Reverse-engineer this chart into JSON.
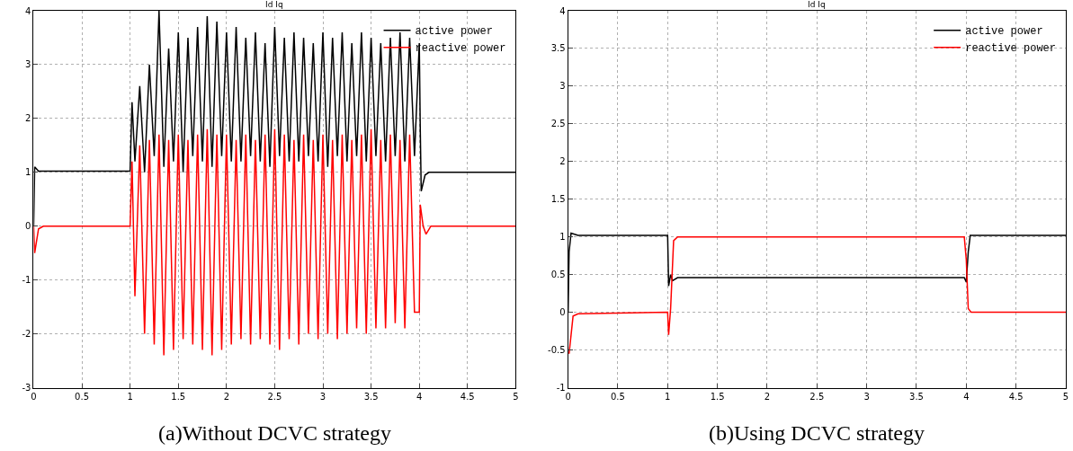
{
  "chart_data": [
    {
      "type": "line",
      "title": "Id Iq",
      "annotations": [
        "(a)Without DCVC strategy"
      ],
      "xlim": [
        0,
        5
      ],
      "xticks": [
        0,
        0.5,
        1,
        1.5,
        2,
        2.5,
        3,
        3.5,
        4,
        4.5,
        5
      ],
      "ylim": [
        -3,
        4
      ],
      "yticks": [
        -3,
        -2,
        -1,
        0,
        1,
        2,
        3,
        4
      ],
      "grid": true,
      "legend": "top right",
      "marker": "none",
      "line_style": "solid",
      "series": [
        {
          "name": "active power",
          "color": "#000000",
          "x": [
            0,
            0.01,
            0.05,
            0.5,
            1.0,
            1.02,
            1.05,
            1.1,
            1.15,
            1.2,
            1.25,
            1.3,
            1.35,
            1.4,
            1.45,
            1.5,
            1.55,
            1.6,
            1.65,
            1.7,
            1.75,
            1.8,
            1.85,
            1.9,
            1.95,
            2.0,
            2.05,
            2.1,
            2.15,
            2.2,
            2.25,
            2.3,
            2.35,
            2.4,
            2.45,
            2.5,
            2.55,
            2.6,
            2.65,
            2.7,
            2.75,
            2.8,
            2.85,
            2.9,
            2.95,
            3.0,
            3.05,
            3.1,
            3.15,
            3.2,
            3.25,
            3.3,
            3.35,
            3.4,
            3.45,
            3.5,
            3.55,
            3.6,
            3.65,
            3.7,
            3.75,
            3.8,
            3.85,
            3.9,
            3.95,
            4.0,
            4.01,
            4.02,
            4.06,
            4.1,
            5
          ],
          "values": [
            0,
            1.1,
            1.02,
            1.02,
            1.02,
            2.3,
            1.2,
            2.6,
            1.0,
            3.0,
            1.3,
            4.0,
            1.1,
            3.3,
            1.2,
            3.6,
            1.0,
            3.5,
            1.3,
            3.7,
            1.2,
            3.9,
            1.1,
            3.8,
            1.3,
            3.6,
            1.2,
            3.7,
            1.2,
            3.5,
            1.3,
            3.6,
            1.2,
            3.4,
            1.1,
            3.7,
            1.3,
            3.5,
            1.2,
            3.6,
            1.2,
            3.5,
            1.3,
            3.4,
            1.2,
            3.6,
            1.1,
            3.5,
            1.3,
            3.6,
            1.2,
            3.4,
            1.3,
            3.6,
            1.2,
            3.5,
            1.3,
            3.4,
            1.2,
            3.5,
            1.3,
            3.6,
            1.2,
            3.5,
            1.3,
            3.4,
            1.8,
            0.65,
            0.95,
            1.0,
            1.0
          ]
        },
        {
          "name": "reactive power",
          "color": "#ff0000",
          "x": [
            0,
            0.01,
            0.05,
            0.1,
            1.0,
            1.02,
            1.05,
            1.1,
            1.15,
            1.2,
            1.25,
            1.3,
            1.35,
            1.4,
            1.45,
            1.5,
            1.55,
            1.6,
            1.65,
            1.7,
            1.75,
            1.8,
            1.85,
            1.9,
            1.95,
            2.0,
            2.05,
            2.1,
            2.15,
            2.2,
            2.25,
            2.3,
            2.35,
            2.4,
            2.45,
            2.5,
            2.55,
            2.6,
            2.65,
            2.7,
            2.75,
            2.8,
            2.85,
            2.9,
            2.95,
            3.0,
            3.05,
            3.1,
            3.15,
            3.2,
            3.25,
            3.3,
            3.35,
            3.4,
            3.45,
            3.5,
            3.55,
            3.6,
            3.65,
            3.7,
            3.75,
            3.8,
            3.85,
            3.9,
            3.95,
            4.0,
            4.01,
            4.04,
            4.07,
            4.12,
            5
          ],
          "values": [
            0,
            -0.5,
            -0.05,
            0,
            0,
            1.2,
            -1.3,
            1.5,
            -2.0,
            1.6,
            -2.2,
            1.7,
            -2.4,
            1.6,
            -2.3,
            1.7,
            -2.1,
            1.6,
            -2.2,
            1.7,
            -2.3,
            1.8,
            -2.4,
            1.7,
            -2.3,
            1.7,
            -2.2,
            1.6,
            -2.1,
            1.7,
            -2.2,
            1.6,
            -2.1,
            1.7,
            -2.2,
            1.8,
            -2.3,
            1.7,
            -2.1,
            1.6,
            -2.2,
            1.7,
            -2.0,
            1.6,
            -2.1,
            1.7,
            -2.0,
            1.6,
            -2.1,
            1.7,
            -2.0,
            1.6,
            -1.9,
            1.7,
            -2.0,
            1.8,
            -1.9,
            1.6,
            -1.9,
            1.7,
            -1.8,
            1.6,
            -1.9,
            1.7,
            -1.6,
            -1.6,
            0.4,
            0,
            -0.15,
            0,
            0
          ]
        }
      ]
    },
    {
      "type": "line",
      "title": "Id Iq",
      "annotations": [
        "(b)Using DCVC strategy"
      ],
      "xlim": [
        0,
        5
      ],
      "xticks": [
        0,
        0.5,
        1,
        1.5,
        2,
        2.5,
        3,
        3.5,
        4,
        4.5,
        5
      ],
      "ylim": [
        -1,
        4
      ],
      "yticks": [
        -1,
        -0.5,
        0,
        0.5,
        1,
        1.5,
        2,
        2.5,
        3,
        3.5,
        4
      ],
      "grid": true,
      "legend": "top right",
      "marker": "none",
      "line_style": "solid",
      "series": [
        {
          "name": "active power",
          "color": "#000000",
          "x": [
            0,
            0.01,
            0.03,
            0.1,
            1.0,
            1.01,
            1.03,
            1.05,
            1.1,
            3.98,
            4.0,
            4.02,
            4.04,
            5
          ],
          "values": [
            0,
            0.8,
            1.05,
            1.02,
            1.02,
            0.35,
            0.5,
            0.42,
            0.46,
            0.46,
            0.4,
            0.8,
            1.02,
            1.02
          ]
        },
        {
          "name": "reactive power",
          "color": "#ff0000",
          "x": [
            0.01,
            0.05,
            0.1,
            1.0,
            1.01,
            1.03,
            1.06,
            1.1,
            3.98,
            4.0,
            4.02,
            4.05,
            5
          ],
          "values": [
            -0.55,
            -0.05,
            -0.02,
            0,
            -0.3,
            0.05,
            0.95,
            1.0,
            1.0,
            0.7,
            0.05,
            0,
            0
          ]
        }
      ]
    }
  ]
}
